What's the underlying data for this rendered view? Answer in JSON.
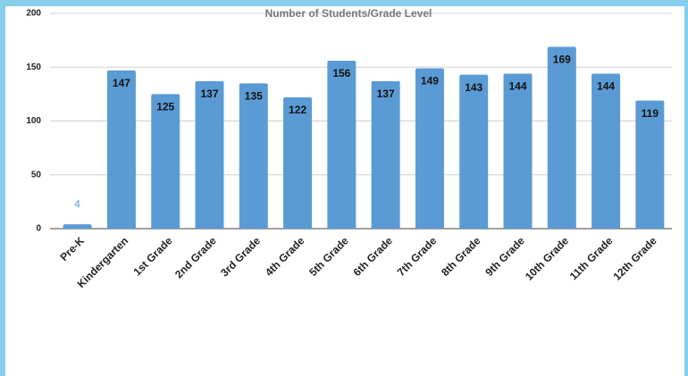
{
  "chart_data": {
    "type": "bar",
    "title": "Number of Students/Grade Level",
    "categories": [
      "Pre-K",
      "Kindergarten",
      "1st Grade",
      "2nd Grade",
      "3rd Grade",
      "4th Grade",
      "5th Grade",
      "6th Grade",
      "7th Grade",
      "8th Grade",
      "9th Grade",
      "10th Grade",
      "11th Grade",
      "12th Grade"
    ],
    "values": [
      4,
      147,
      125,
      137,
      135,
      122,
      156,
      137,
      149,
      143,
      144,
      169,
      144,
      119
    ],
    "color": "#5b9bd5",
    "ylim": [
      0,
      200
    ],
    "yticks": [
      0,
      50,
      100,
      150,
      200
    ],
    "grid": true
  }
}
